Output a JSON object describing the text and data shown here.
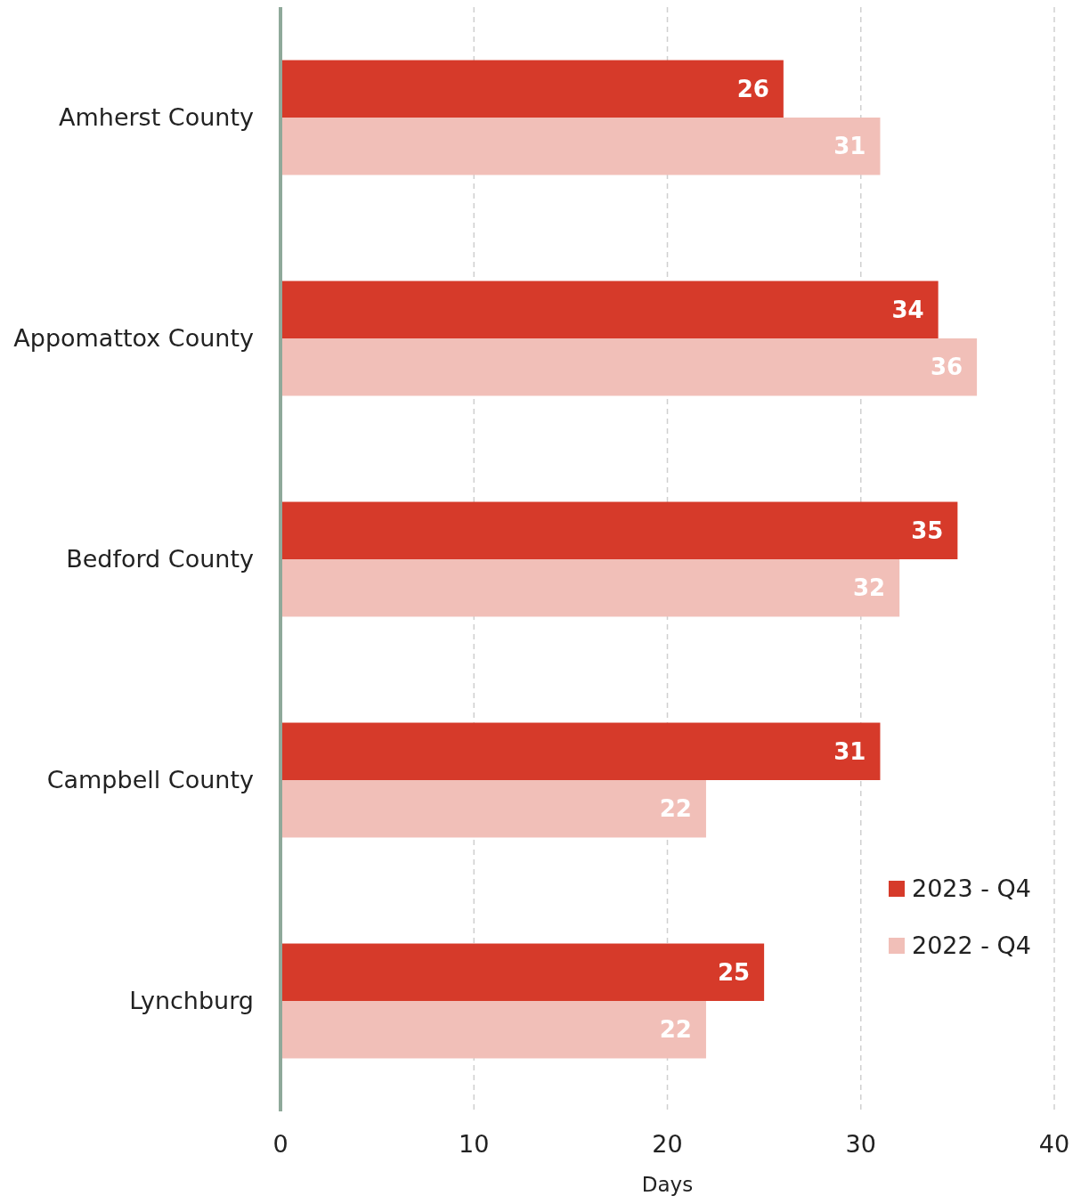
{
  "chart_data": {
    "type": "bar",
    "orientation": "horizontal",
    "xlabel": "Days",
    "categories": [
      "Amherst County",
      "Appomattox County",
      "Bedford County",
      "Campbell County",
      "Lynchburg"
    ],
    "series": [
      {
        "name": "2023 - Q4",
        "color": "#d63a2a",
        "values": [
          26,
          34,
          35,
          31,
          25
        ]
      },
      {
        "name": "2022 - Q4",
        "color": "#f1bfb8",
        "values": [
          31,
          36,
          32,
          22,
          22
        ]
      }
    ],
    "xlim": [
      0,
      40
    ],
    "xticks": [
      0,
      10,
      20,
      30,
      40
    ],
    "grid": "x",
    "legend": "bottom right",
    "data_labels": true
  }
}
